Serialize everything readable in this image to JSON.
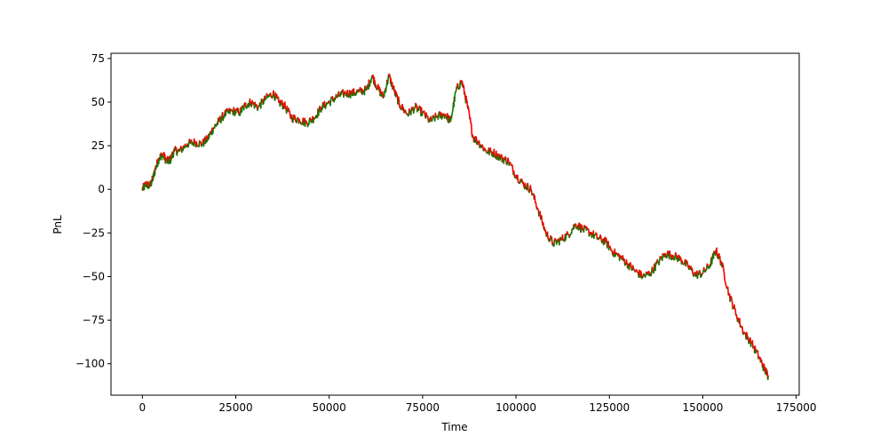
{
  "chart_data": {
    "type": "line",
    "title": "",
    "xlabel": "Time",
    "ylabel": "PnL",
    "xlim": [
      -8400,
      175800
    ],
    "ylim": [
      -118,
      78
    ],
    "x_ticks": [
      0,
      25000,
      50000,
      75000,
      100000,
      125000,
      150000,
      175000
    ],
    "x_tick_labels": [
      "0",
      "25000",
      "50000",
      "75000",
      "100000",
      "125000",
      "150000",
      "175000"
    ],
    "y_ticks": [
      75,
      50,
      25,
      0,
      -25,
      -50,
      -75,
      -100
    ],
    "y_tick_labels": [
      "75",
      "50",
      "25",
      "0",
      "−25",
      "−50",
      "−75",
      "−100"
    ],
    "grid": false,
    "legend": "none",
    "colors": {
      "up": "#008000",
      "down": "#ff0000"
    },
    "series": [
      {
        "x": [
          0,
          1000,
          2000,
          2800,
          3500,
          4500,
          5500,
          6500,
          7500,
          8500,
          10000,
          12000,
          14000,
          16000,
          17500,
          19000,
          20500,
          22000,
          24000,
          26000,
          27500,
          29000,
          31000,
          33000,
          35000,
          36500,
          38000,
          40000,
          42000,
          44000,
          46000,
          48000,
          50000,
          52000,
          54000,
          56000,
          58000,
          60000,
          61500,
          63000,
          64500,
          66000,
          67500,
          69000,
          71000,
          73000,
          75000,
          77000,
          79000,
          81000,
          82500,
          84000,
          85500,
          87000,
          88500,
          90000,
          92000,
          94000,
          96000,
          98000,
          100000,
          102000,
          104000,
          106000,
          108000,
          110000,
          112000,
          114000,
          116000,
          118000,
          120000,
          122000,
          124000,
          126000,
          128000,
          130000,
          132000,
          134000,
          136000,
          138000,
          140000,
          142000,
          144000,
          146000,
          148000,
          150000,
          152000,
          153500,
          155000,
          157000,
          159000,
          161000,
          163000,
          165000,
          166500,
          167500
        ],
        "y": [
          0,
          3,
          2,
          6,
          12,
          18,
          20,
          16,
          17,
          22,
          22,
          26,
          27,
          26,
          29,
          35,
          39,
          43,
          45,
          44,
          48,
          50,
          47,
          52,
          55,
          50,
          48,
          41,
          40,
          38,
          41,
          47,
          50,
          53,
          55,
          55,
          56,
          57,
          65,
          58,
          53,
          65,
          56,
          48,
          43,
          47,
          44,
          39,
          42,
          43,
          39,
          57,
          62,
          48,
          30,
          27,
          22,
          21,
          18,
          16,
          8,
          3,
          0,
          -12,
          -25,
          -31,
          -29,
          -26,
          -20,
          -23,
          -25,
          -28,
          -30,
          -36,
          -39,
          -43,
          -47,
          -50,
          -48,
          -42,
          -37,
          -38,
          -40,
          -44,
          -49,
          -48,
          -43,
          -35,
          -42,
          -60,
          -72,
          -82,
          -88,
          -96,
          -103,
          -107
        ]
      }
    ]
  }
}
